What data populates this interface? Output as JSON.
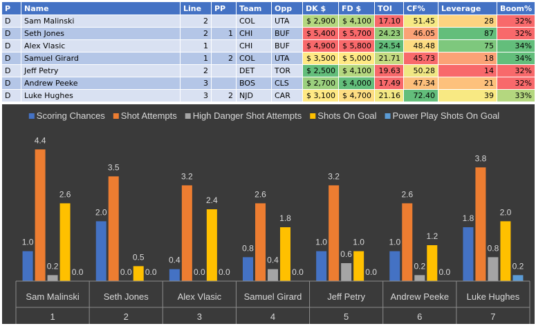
{
  "table": {
    "headers": [
      "P",
      "Name",
      "Line",
      "PP",
      "Team",
      "Opp",
      "DK $",
      "FD $",
      "TOI",
      "CF%",
      "Leverage",
      "Boom%"
    ],
    "rows": [
      [
        "D",
        "Sam Malinski",
        "2",
        "",
        "COL",
        "UTA",
        "$ 2,900",
        "$ 4,100",
        "17.10",
        "51.45",
        "28",
        "32%"
      ],
      [
        "D",
        "Seth Jones",
        "2",
        "1",
        "CHI",
        "BUF",
        "$ 5,400",
        "$ 5,700",
        "24.23",
        "46.05",
        "87",
        "32%"
      ],
      [
        "D",
        "Alex Vlasic",
        "1",
        "",
        "CHI",
        "BUF",
        "$ 4,900",
        "$ 5,800",
        "24.54",
        "48.48",
        "75",
        "34%"
      ],
      [
        "D",
        "Samuel Girard",
        "1",
        "2",
        "COL",
        "UTA",
        "$ 3,500",
        "$ 5,000",
        "21.71",
        "45.73",
        "18",
        "34%"
      ],
      [
        "D",
        "Jeff Petry",
        "2",
        "",
        "DET",
        "TOR",
        "$ 2,500",
        "$ 4,100",
        "19.63",
        "50.28",
        "14",
        "32%"
      ],
      [
        "D",
        "Andrew Peeke",
        "3",
        "",
        "BOS",
        "CLS",
        "$ 2,700",
        "$ 4,000",
        "17.49",
        "47.34",
        "21",
        "32%"
      ],
      [
        "D",
        "Luke Hughes",
        "3",
        "2",
        "NJD",
        "CAR",
        "$ 3,100",
        "$ 4,700",
        "21.16",
        "72.40",
        "39",
        "33%"
      ]
    ],
    "cell_colors": [
      [
        "",
        "",
        "",
        "",
        "",
        "",
        "#b4d77f",
        "#b4d77f",
        "#f8696b",
        "#f6e984",
        "#fdd380",
        "#f8696b"
      ],
      [
        "",
        "",
        "",
        "",
        "",
        "",
        "#f8696b",
        "#f8696b",
        "#96cc7a",
        "#fba276",
        "#63be7b",
        "#f8696b"
      ],
      [
        "",
        "",
        "",
        "",
        "",
        "",
        "#f8696b",
        "#f8696b",
        "#63be7b",
        "#fddc82",
        "#7ec87d",
        "#63be7b"
      ],
      [
        "",
        "",
        "",
        "",
        "",
        "",
        "#ffe984",
        "#ffe984",
        "#c4da80",
        "#f8696b",
        "#fba276",
        "#63be7b"
      ],
      [
        "",
        "",
        "",
        "",
        "",
        "",
        "#63be7b",
        "#b4d77f",
        "#f8696b",
        "#f0e784",
        "#f8696b",
        "#f8696b"
      ],
      [
        "",
        "",
        "",
        "",
        "",
        "",
        "#9bd07e",
        "#63be7b",
        "#f8696b",
        "#fcbf7b",
        "#fdc17c",
        "#f8696b"
      ],
      [
        "",
        "",
        "",
        "",
        "",
        "",
        "#ffe984",
        "#fddd82",
        "#f3e884",
        "#63be7b",
        "#f8e983",
        "#b4d77f"
      ]
    ]
  },
  "chart_data": {
    "type": "bar",
    "title": "",
    "categories": [
      "Sam Malinski",
      "Seth Jones",
      "Alex Vlasic",
      "Samuel Girard",
      "Jeff Petry",
      "Andrew Peeke",
      "Luke Hughes"
    ],
    "category_numbers": [
      "1",
      "2",
      "3",
      "4",
      "5",
      "6",
      "7"
    ],
    "ylim": [
      0,
      4.8
    ],
    "legend_position": "top",
    "series": [
      {
        "name": "Scoring Chances",
        "color": "#4472c4",
        "values": [
          1.0,
          2.0,
          0.4,
          0.8,
          1.0,
          1.0,
          1.8
        ],
        "labels": [
          "1.0",
          "2.0",
          "0.4",
          "0.8",
          "1.0",
          "1.0",
          "1.8"
        ]
      },
      {
        "name": "Shot Attempts",
        "color": "#ed7d31",
        "values": [
          4.4,
          3.5,
          3.2,
          2.6,
          3.2,
          2.6,
          3.8
        ],
        "labels": [
          "4.4",
          "3.5",
          "3.2",
          "2.6",
          "3.2",
          "2.6",
          "3.8"
        ]
      },
      {
        "name": "High Danger Shot Attempts",
        "color": "#a5a5a5",
        "values": [
          0.2,
          0.0,
          0.0,
          0.4,
          0.6,
          0.2,
          0.8
        ],
        "labels": [
          "0.2",
          "0.0",
          "0.0",
          "0.4",
          "0.6",
          "0.2",
          "0.8"
        ]
      },
      {
        "name": "Shots On Goal",
        "color": "#ffc000",
        "values": [
          2.6,
          0.5,
          2.4,
          1.8,
          1.0,
          1.2,
          2.0
        ],
        "labels": [
          "2.6",
          "0.5",
          "2.4",
          "1.8",
          "1.0",
          "1.2",
          "2.0"
        ]
      },
      {
        "name": "Power Play Shots On Goal",
        "color": "#5b9bd5",
        "values": [
          0.0,
          0.0,
          0.0,
          0.0,
          0.0,
          0.0,
          0.2
        ],
        "labels": [
          "0.0",
          "0.0",
          "0.0",
          "0.0",
          "0.0",
          "0.0",
          "0.2"
        ]
      }
    ]
  }
}
